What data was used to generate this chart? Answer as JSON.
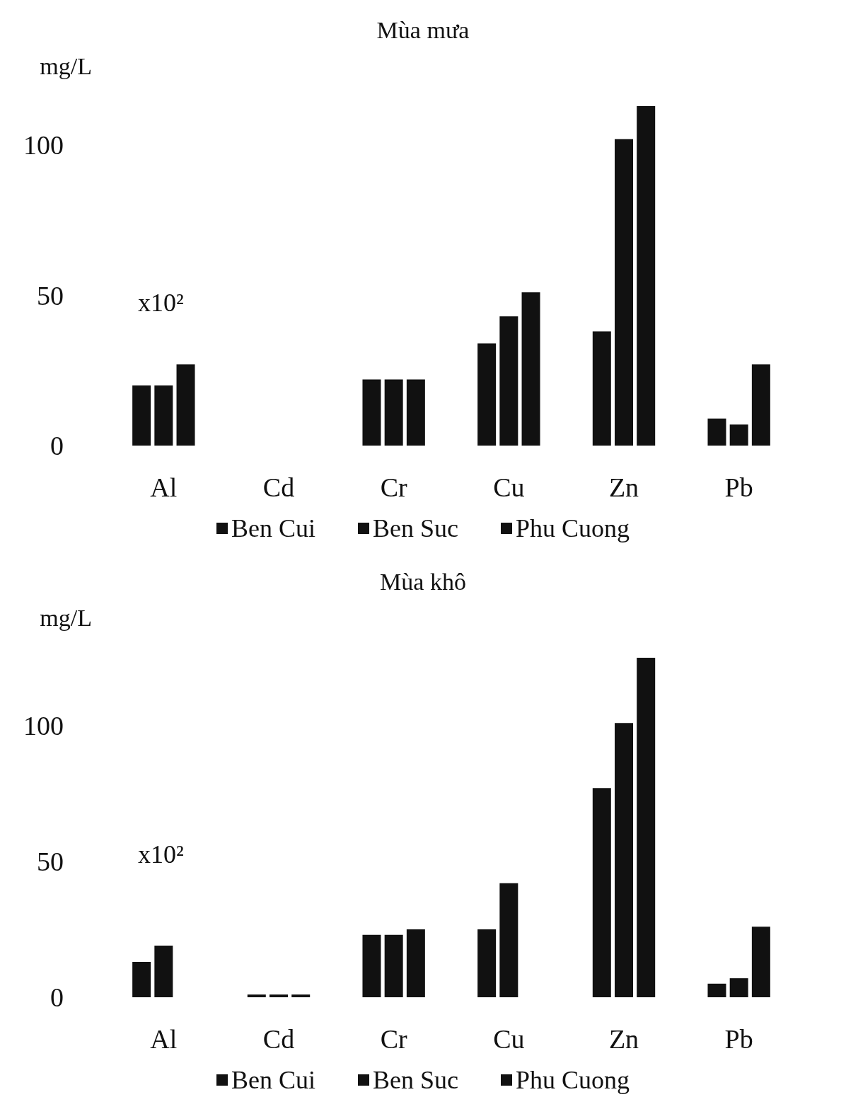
{
  "chart_data": [
    {
      "type": "bar",
      "title": "Mùa mưa",
      "ylim": [
        0,
        113
      ],
      "ylabel": "mg/L",
      "annotations": [
        "x10²"
      ],
      "categories": [
        "Al",
        "Cd",
        "Cr",
        "Cu",
        "Zn",
        "Pb"
      ],
      "yticks": [
        0,
        50,
        100
      ],
      "grid": false,
      "legend": "bottom",
      "series": [
        {
          "name": "Ben Cui",
          "color": "#111111",
          "values": [
            20,
            0,
            22,
            34,
            38,
            9
          ]
        },
        {
          "name": "Ben Suc",
          "color": "#111111",
          "values": [
            20,
            0,
            22,
            43,
            102,
            7
          ]
        },
        {
          "name": "Phu Cuong",
          "color": "#111111",
          "values": [
            27,
            0,
            22,
            51,
            113,
            27
          ]
        }
      ]
    },
    {
      "type": "bar",
      "title": "Mùa khô",
      "ylim": [
        0,
        125
      ],
      "ylabel": "mg/L",
      "annotations": [
        "x10²"
      ],
      "categories": [
        "Al",
        "Cd",
        "Cr",
        "Cu",
        "Zn",
        "Pb"
      ],
      "yticks": [
        0,
        50,
        100
      ],
      "grid": false,
      "legend": "bottom",
      "series": [
        {
          "name": "Ben Cui",
          "color": "#111111",
          "values": [
            13,
            1,
            23,
            25,
            77,
            5
          ]
        },
        {
          "name": "Ben Suc",
          "color": "#111111",
          "values": [
            19,
            1,
            23,
            42,
            101,
            7
          ]
        },
        {
          "name": "Phu Cuong",
          "color": "#111111",
          "values": [
            null,
            1,
            25,
            null,
            125,
            26
          ]
        }
      ]
    }
  ]
}
